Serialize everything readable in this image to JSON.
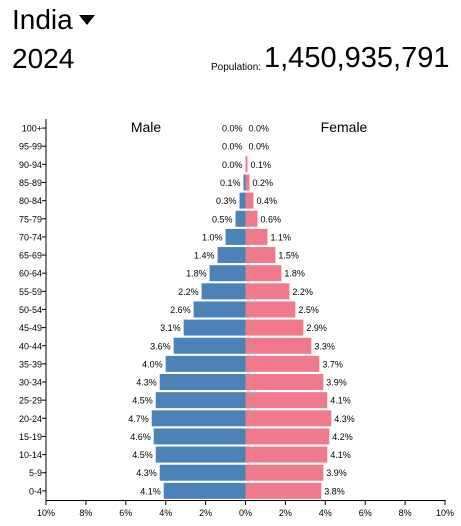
{
  "header": {
    "country": "India",
    "dropdown_icon": "caret-down-icon",
    "year": "2024",
    "population_label": "Population:",
    "population_value": "1,450,935,791"
  },
  "chart_data": {
    "type": "bar",
    "orientation": "horizontal",
    "categories": [
      "0-4",
      "5-9",
      "10-14",
      "15-19",
      "20-24",
      "25-29",
      "30-34",
      "35-39",
      "40-44",
      "45-49",
      "50-54",
      "55-59",
      "60-64",
      "65-69",
      "70-74",
      "75-79",
      "80-84",
      "85-89",
      "90-94",
      "95-99",
      "100+"
    ],
    "series": [
      {
        "name": "Male",
        "color": "#4b82b8",
        "values": [
          4.1,
          4.3,
          4.5,
          4.6,
          4.7,
          4.5,
          4.3,
          4.0,
          3.6,
          3.1,
          2.6,
          2.2,
          1.8,
          1.4,
          1.0,
          0.5,
          0.3,
          0.1,
          0.0,
          0.0,
          0.0
        ],
        "labels": [
          "4.1%",
          "4.3%",
          "4.5%",
          "4.6%",
          "4.7%",
          "4.5%",
          "4.3%",
          "4.0%",
          "3.6%",
          "3.1%",
          "2.6%",
          "2.2%",
          "1.8%",
          "1.4%",
          "1.0%",
          "0.5%",
          "0.3%",
          "0.1%",
          "0.0%",
          "0.0%",
          "0.0%"
        ]
      },
      {
        "name": "Female",
        "color": "#ef7a8c",
        "values": [
          3.8,
          3.9,
          4.1,
          4.2,
          4.3,
          4.1,
          3.9,
          3.7,
          3.3,
          2.9,
          2.5,
          2.2,
          1.8,
          1.5,
          1.1,
          0.6,
          0.4,
          0.2,
          0.1,
          0.0,
          0.0
        ],
        "labels": [
          "3.8%",
          "3.9%",
          "4.1%",
          "4.2%",
          "4.3%",
          "4.1%",
          "3.9%",
          "3.7%",
          "3.3%",
          "2.9%",
          "2.5%",
          "2.2%",
          "1.8%",
          "1.5%",
          "1.1%",
          "0.6%",
          "0.4%",
          "0.2%",
          "0.1%",
          "0.0%",
          "0.0%"
        ]
      }
    ],
    "xlim": [
      -10,
      10
    ],
    "x_ticks": [
      -10,
      -8,
      -6,
      -4,
      -2,
      0,
      2,
      4,
      6,
      8,
      10
    ],
    "x_tick_labels": [
      "10%",
      "8%",
      "6%",
      "4%",
      "2%",
      "0%",
      "2%",
      "4%",
      "6%",
      "8%",
      "10%"
    ],
    "male_title": "Male",
    "female_title": "Female",
    "grid": false
  }
}
